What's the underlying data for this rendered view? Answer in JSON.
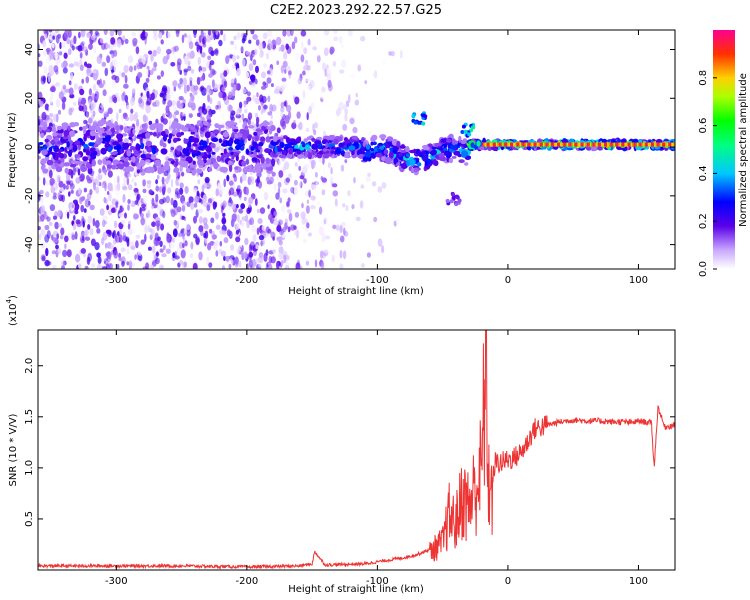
{
  "title": "C2E2.2023.292.22.57.G25",
  "colorbar": {
    "label": "Normalized spectral amplitude",
    "ticks": [
      "0.0",
      "0.2",
      "0.4",
      "0.6",
      "0.8"
    ],
    "tick_values": [
      0.0,
      0.2,
      0.4,
      0.6,
      0.8
    ],
    "range": [
      0,
      1
    ]
  },
  "chart_data": [
    {
      "type": "heatmap",
      "xlabel": "Height of straight line (km)",
      "ylabel": "Frequency (Hz)",
      "xlim": [
        -360,
        128
      ],
      "ylim": [
        -50,
        48
      ],
      "xticks": [
        -300,
        -200,
        -100,
        0,
        100
      ],
      "xtick_labels": [
        "-300",
        "-200",
        "-100",
        "0",
        "100"
      ],
      "yticks": [
        -40,
        -20,
        0,
        20,
        40
      ],
      "ytick_labels": [
        "-40",
        "-20",
        "0",
        "20",
        "40"
      ],
      "band": {
        "description_values": {
          "scatter_end_x": -100,
          "dense_band_center_hz": 0,
          "tone_center_hz": 1
        },
        "segments": [
          {
            "x_from": -360,
            "x_to": -180,
            "center_hz": 0,
            "halfwidth_hz": 10,
            "peak": 0.35
          },
          {
            "x_from": -180,
            "x_to": -110,
            "center_hz": 0,
            "halfwidth_hz": 4,
            "peak": 0.45
          },
          {
            "x_from": -110,
            "x_to": -30,
            "center_hz": -3,
            "halfwidth_hz": 5,
            "peak": 0.5
          },
          {
            "x_from": -30,
            "x_to": 128,
            "center_hz": 1,
            "halfwidth_hz": 1.5,
            "peak": 0.95
          }
        ],
        "islands": [
          {
            "x": -68,
            "hz": 12,
            "peak": 0.45
          },
          {
            "x": -42,
            "hz": -21,
            "peak": 0.2
          },
          {
            "x": -30,
            "hz": 7,
            "peak": 0.5
          }
        ]
      }
    },
    {
      "type": "line",
      "xlabel": "Height of straight line (km)",
      "ylabel": "SNR (10 * V/V)",
      "y_multiplier_label": "(x10",
      "y_multiplier_exp": "4",
      "y_multiplier_close": ")",
      "xlim": [
        -360,
        128
      ],
      "ylim": [
        0,
        2.35
      ],
      "xticks": [
        -300,
        -200,
        -100,
        0,
        100
      ],
      "xtick_labels": [
        "-300",
        "-200",
        "-100",
        "0",
        "100"
      ],
      "yticks": [
        0.5,
        1.0,
        1.5,
        2.0
      ],
      "ytick_labels": [
        "0.5",
        "1.0",
        "1.5",
        "2.0"
      ],
      "series": [
        {
          "color": "#ee3333",
          "x": [
            -360,
            -300,
            -250,
            -200,
            -160,
            -150,
            -148,
            -140,
            -110,
            -100,
            -90,
            -80,
            -70,
            -60,
            -50,
            -45,
            -40,
            -35,
            -30,
            -25,
            -20,
            -17,
            -15,
            -12,
            -10,
            -5,
            0,
            5,
            10,
            15,
            20,
            30,
            40,
            50,
            60,
            70,
            80,
            90,
            95,
            100,
            110,
            112,
            115,
            120,
            128
          ],
          "y": [
            0.04,
            0.04,
            0.04,
            0.03,
            0.04,
            0.06,
            0.18,
            0.05,
            0.06,
            0.08,
            0.1,
            0.12,
            0.15,
            0.2,
            0.3,
            0.6,
            0.5,
            0.8,
            0.7,
            0.9,
            1.1,
            2.35,
            1.0,
            0.8,
            1.05,
            1.05,
            1.08,
            1.1,
            1.15,
            1.25,
            1.38,
            1.42,
            1.45,
            1.47,
            1.46,
            1.46,
            1.45,
            1.45,
            1.44,
            1.46,
            1.44,
            1.0,
            1.6,
            1.4,
            1.42
          ]
        }
      ]
    }
  ]
}
